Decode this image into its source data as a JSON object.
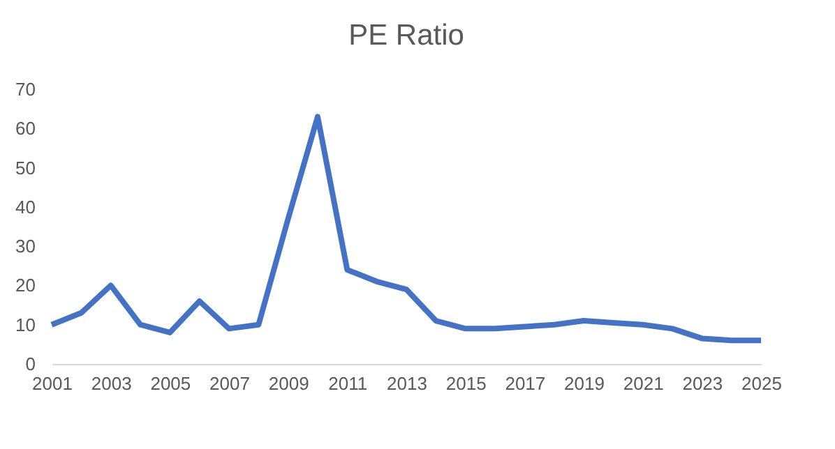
{
  "chart_data": {
    "type": "line",
    "title": "PE Ratio",
    "x": [
      2001,
      2002,
      2003,
      2004,
      2005,
      2006,
      2007,
      2008,
      2009,
      2010,
      2011,
      2012,
      2013,
      2014,
      2015,
      2016,
      2017,
      2018,
      2019,
      2020,
      2021,
      2022,
      2023,
      2024,
      2025
    ],
    "series": [
      {
        "color": "#4472c4",
        "values": [
          10,
          13,
          20,
          10,
          8,
          16,
          9,
          10,
          37,
          63,
          24,
          21,
          19,
          11,
          9,
          9,
          9.5,
          10,
          11,
          10.5,
          10,
          9,
          6.5,
          6,
          6
        ]
      }
    ],
    "xlim": [
      2001,
      2025
    ],
    "xticks": [
      2001,
      2003,
      2005,
      2007,
      2009,
      2011,
      2013,
      2015,
      2017,
      2019,
      2021,
      2023,
      2025
    ],
    "ylim": [
      0,
      70
    ],
    "yticks": [
      0,
      10,
      20,
      30,
      40,
      50,
      60,
      70
    ],
    "grid": false,
    "legend": false,
    "marker": "none",
    "line_style": "solid"
  }
}
